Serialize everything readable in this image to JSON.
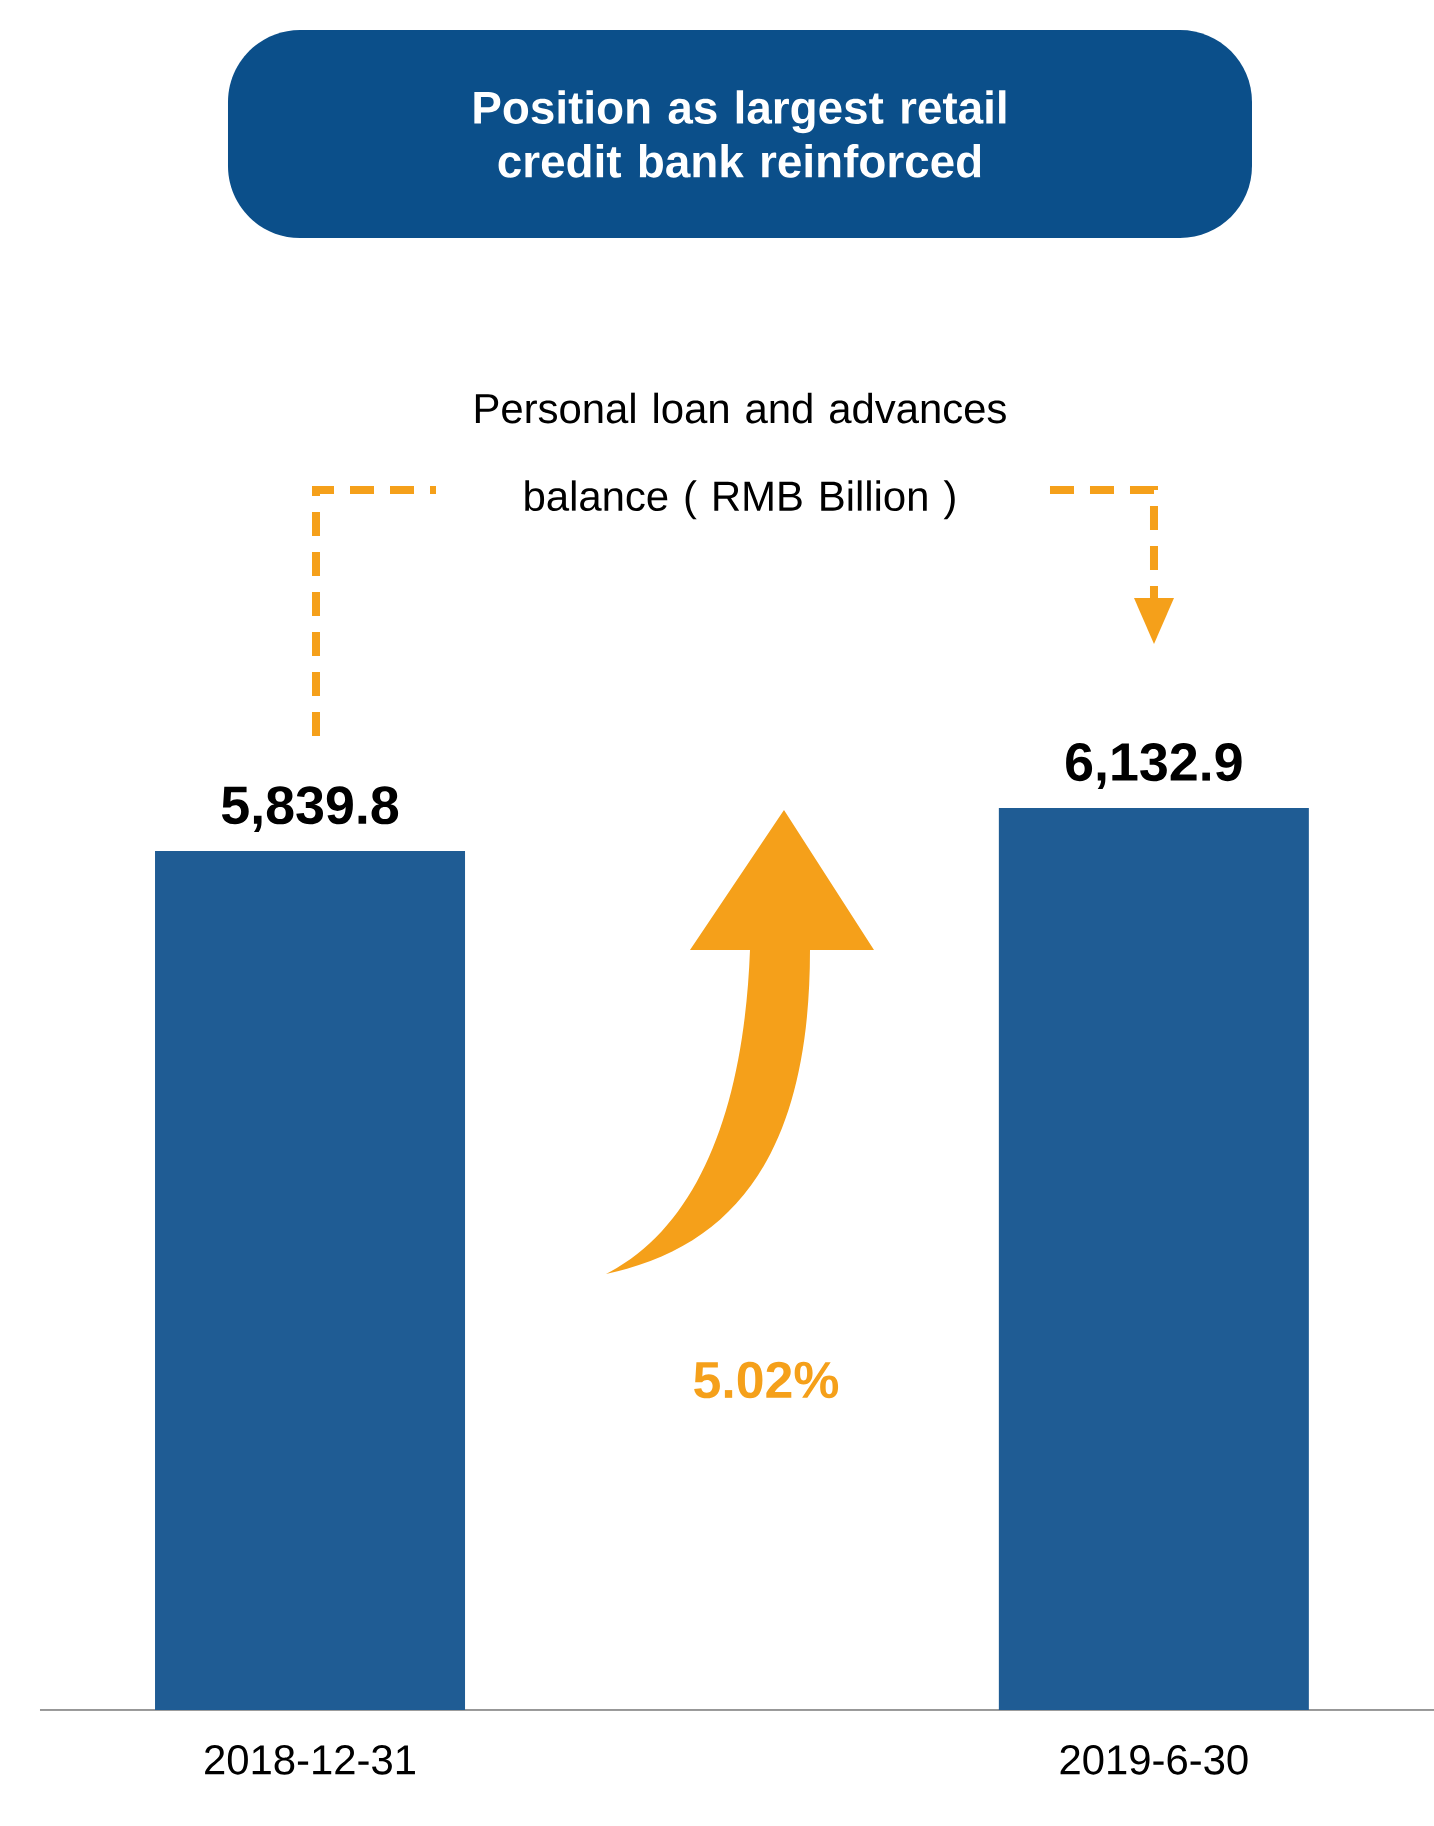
{
  "chart_data": {
    "type": "bar",
    "title": "Position as largest retail credit bank reinforced",
    "subtitle": "Personal loan and advances balance ( RMB Billion )",
    "categories": [
      "2018-12-31",
      "2019-6-30"
    ],
    "values": [
      5839.8,
      6132.9
    ],
    "value_labels": [
      "5,839.8",
      "6,132.9"
    ],
    "color": "#1f5c94",
    "tick_labels": "x",
    "annotations": [
      "5.02%"
    ]
  }
}
